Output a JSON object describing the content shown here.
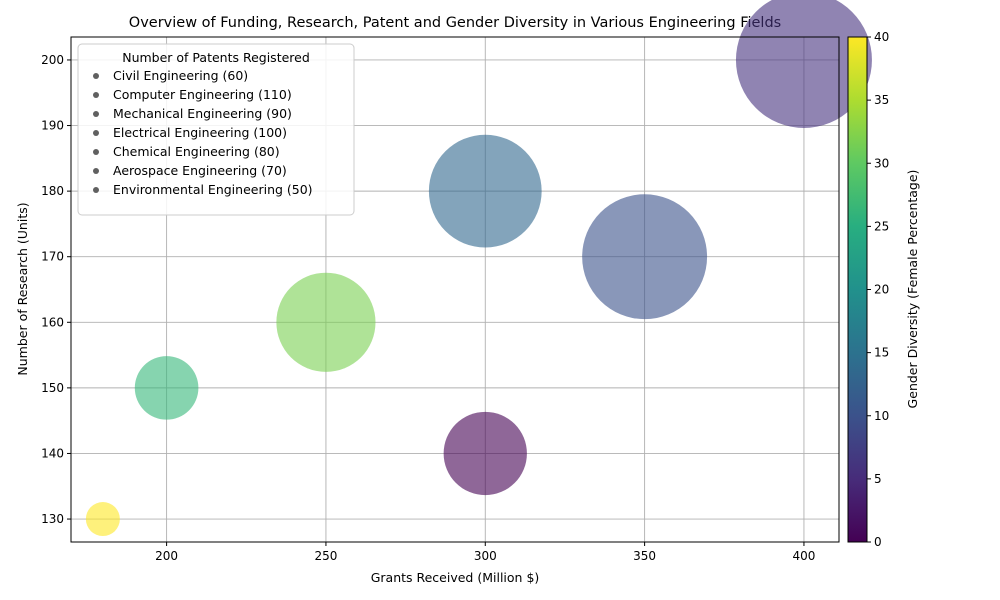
{
  "chart_data": {
    "type": "scatter",
    "title": "Overview of Funding, Research, Patent and Gender Diversity in Various Engineering Fields",
    "xlabel": "Grants Received (Million $)",
    "ylabel": "Number of Research (Units)",
    "colorbar_label": "Gender Diversity (Female Percentage)",
    "xlim": [
      170,
      411
    ],
    "ylim": [
      126.5,
      203.5
    ],
    "x_ticks": [
      200,
      250,
      300,
      350,
      400
    ],
    "y_ticks": [
      130,
      140,
      150,
      160,
      170,
      180,
      190,
      200
    ],
    "colorbar_ticks": [
      0,
      5,
      10,
      15,
      20,
      25,
      30,
      35,
      40
    ],
    "colorbar_range": [
      0,
      40
    ],
    "grid": true,
    "legend_title": "Number of Patents Registered",
    "legend_placement": "top-left",
    "points": [
      {
        "x": 400,
        "y": 200,
        "female_pct": 7,
        "patents": 110,
        "color": "#46327e"
      },
      {
        "x": 300,
        "y": 180,
        "female_pct": 14,
        "patents": 90,
        "color": "#31688e"
      },
      {
        "x": 350,
        "y": 170,
        "female_pct": 9,
        "patents": 100,
        "color": "#3b528b"
      },
      {
        "x": 250,
        "y": 160,
        "female_pct": 31,
        "patents": 80,
        "color": "#7ad151"
      },
      {
        "x": 200,
        "y": 150,
        "female_pct": 28,
        "patents": 60,
        "color": "#35b779"
      },
      {
        "x": 300,
        "y": 140,
        "female_pct": 2,
        "patents": 70,
        "color": "#440154"
      },
      {
        "x": 180,
        "y": 130,
        "female_pct": 40,
        "patents": 50,
        "color": "#fde725"
      }
    ],
    "legend_entries": [
      "Civil Engineering (60)",
      "Computer Engineering (110)",
      "Mechanical Engineering (90)",
      "Electrical Engineering (100)",
      "Chemical Engineering (80)",
      "Aerospace Engineering (70)",
      "Environmental Engineering (50)"
    ]
  }
}
